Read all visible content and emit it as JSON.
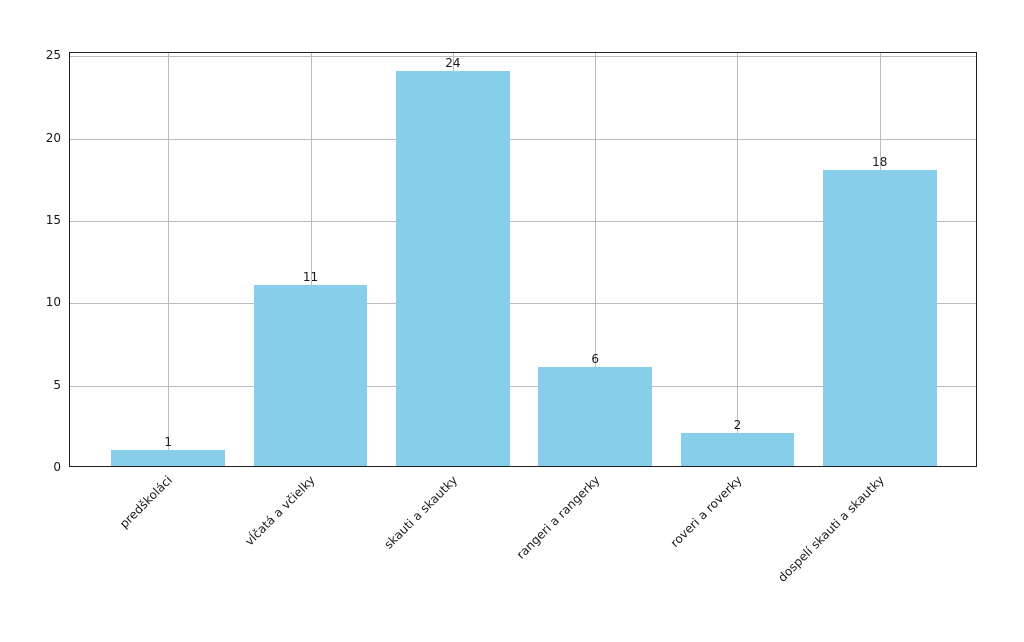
{
  "figure": {
    "background": "#ffffff"
  },
  "chart_data": {
    "type": "bar",
    "title": "",
    "xlabel": "",
    "ylabel": "",
    "categories": [
      "predškoláci",
      "vĺčatá a včielky",
      "skauti a skautky",
      "rangeri a rangerky",
      "roveri a roverky",
      "dospelí skauti a skautky"
    ],
    "values": [
      1,
      11,
      24,
      6,
      2,
      18
    ],
    "bar_labels": [
      "1",
      "11",
      "24",
      "6",
      "2",
      "18"
    ],
    "ylim": [
      0,
      25.2
    ],
    "yticks": [
      0,
      5,
      10,
      15,
      20,
      25
    ],
    "grid": true,
    "grid_axes": "both",
    "legend_position": "none",
    "bar_color": "#87ceeb",
    "grid_color": "#bcbcbc",
    "spine_color": "#1f1f1f",
    "text_color": "#1a1a1a",
    "x_label_rotation_deg": 45
  }
}
